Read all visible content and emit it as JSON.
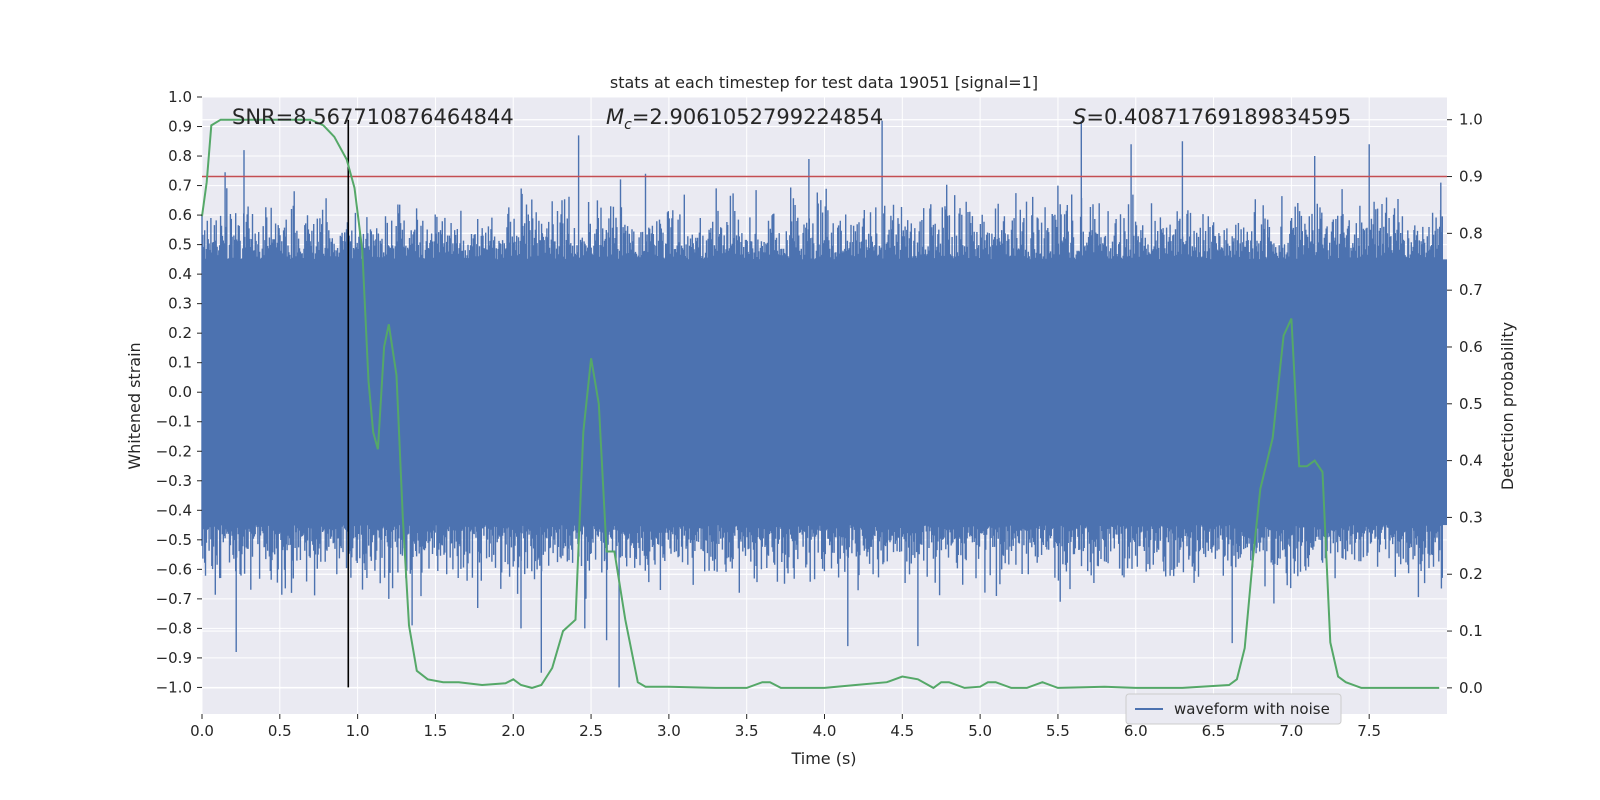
{
  "chart_data": {
    "type": "line",
    "title": "stats at each timestep for test data 19051 [signal=1]",
    "xlabel": "Time (s)",
    "ylabel_left": "Whitened strain",
    "ylabel_right": "Detection probability",
    "xlim": [
      0.0,
      8.0
    ],
    "ylim_left": [
      -1.09,
      1.0
    ],
    "ylim_right": [
      -0.046,
      1.04
    ],
    "xticks": [
      "0.0",
      "0.5",
      "1.0",
      "1.5",
      "2.0",
      "2.5",
      "3.0",
      "3.5",
      "4.0",
      "4.5",
      "5.0",
      "5.5",
      "6.0",
      "6.5",
      "7.0",
      "7.5"
    ],
    "yticks_left": [
      "1.0",
      "0.9",
      "0.8",
      "0.7",
      "0.6",
      "0.5",
      "0.4",
      "0.3",
      "0.2",
      "0.1",
      "0.0",
      "−0.1",
      "−0.2",
      "−0.3",
      "−0.4",
      "−0.5",
      "−0.6",
      "−0.7",
      "−0.8",
      "−0.9",
      "−1.0"
    ],
    "yticks_right": [
      "1.0",
      "0.9",
      "0.8",
      "0.7",
      "0.6",
      "0.5",
      "0.4",
      "0.3",
      "0.2",
      "0.1",
      "0.0"
    ],
    "grid": true,
    "legend": {
      "placement": "lower-right",
      "entries": [
        "waveform with noise"
      ]
    },
    "annotations": {
      "snr": "SNR=8.567710876464844",
      "mc_prefix": "M",
      "mc_sub": "c",
      "mc_value": "=2.9061052799224854",
      "s_prefix": "S",
      "s_value": "=0.40871769189834595"
    },
    "colors": {
      "background": "#eaeaf2",
      "waveform": "#4c72b0",
      "probability": "#55a868",
      "threshold": "#c44e52",
      "marker": "#000000",
      "grid": "#ffffff"
    },
    "threshold_probability": 0.9,
    "signal_marker_time": 0.94,
    "series": [
      {
        "name": "waveform with noise",
        "axis": "left",
        "envelope": {
          "upper_typical": 0.45,
          "lower_typical": -0.45,
          "max_peak": 0.92,
          "min_peak": -1.0
        },
        "peaks": [
          [
            0.0,
            0.6
          ],
          [
            0.22,
            -0.88
          ],
          [
            0.27,
            0.82
          ],
          [
            1.0,
            -0.5
          ],
          [
            1.2,
            -0.7
          ],
          [
            1.35,
            -0.79
          ],
          [
            2.05,
            -0.8
          ],
          [
            2.18,
            -0.95
          ],
          [
            2.42,
            0.87
          ],
          [
            2.46,
            -0.8
          ],
          [
            2.6,
            -0.84
          ],
          [
            2.68,
            -1.0
          ],
          [
            2.85,
            0.74
          ],
          [
            3.9,
            0.79
          ],
          [
            4.15,
            -0.86
          ],
          [
            4.37,
            0.92
          ],
          [
            4.6,
            -0.86
          ],
          [
            5.5,
            0.7
          ],
          [
            5.65,
            0.92
          ],
          [
            5.97,
            0.84
          ],
          [
            6.3,
            0.85
          ],
          [
            6.62,
            -0.85
          ],
          [
            7.15,
            0.8
          ],
          [
            7.5,
            0.84
          ],
          [
            7.96,
            0.71
          ]
        ]
      },
      {
        "name": "",
        "axis": "right",
        "x": [
          0.0,
          0.03,
          0.06,
          0.12,
          0.3,
          0.5,
          0.7,
          0.78,
          0.85,
          0.93,
          0.98,
          1.03,
          1.07,
          1.1,
          1.13,
          1.17,
          1.2,
          1.25,
          1.29,
          1.33,
          1.38,
          1.45,
          1.55,
          1.65,
          1.8,
          1.95,
          2.0,
          2.05,
          2.12,
          2.18,
          2.25,
          2.32,
          2.4,
          2.45,
          2.5,
          2.55,
          2.6,
          2.65,
          2.72,
          2.8,
          2.85,
          3.0,
          3.3,
          3.5,
          3.6,
          3.65,
          3.72,
          4.0,
          4.2,
          4.4,
          4.5,
          4.6,
          4.7,
          4.75,
          4.8,
          4.9,
          5.0,
          5.05,
          5.1,
          5.2,
          5.3,
          5.4,
          5.5,
          5.8,
          6.0,
          6.3,
          6.6,
          6.65,
          6.7,
          6.75,
          6.8,
          6.88,
          6.95,
          7.0,
          7.05,
          7.1,
          7.15,
          7.2,
          7.25,
          7.3,
          7.35,
          7.45,
          7.6,
          7.8,
          7.95
        ],
        "y": [
          0.83,
          0.89,
          0.99,
          1.0,
          1.0,
          1.0,
          1.0,
          0.99,
          0.97,
          0.93,
          0.88,
          0.77,
          0.54,
          0.45,
          0.42,
          0.6,
          0.64,
          0.55,
          0.3,
          0.11,
          0.03,
          0.015,
          0.01,
          0.01,
          0.005,
          0.008,
          0.015,
          0.005,
          0.0,
          0.005,
          0.035,
          0.1,
          0.12,
          0.45,
          0.58,
          0.5,
          0.24,
          0.24,
          0.12,
          0.01,
          0.002,
          0.002,
          0.0,
          0.0,
          0.01,
          0.01,
          0.0,
          0.0,
          0.005,
          0.01,
          0.02,
          0.015,
          0.0,
          0.01,
          0.01,
          0.0,
          0.002,
          0.01,
          0.01,
          0.0,
          0.0,
          0.01,
          0.0,
          0.002,
          0.0,
          0.0,
          0.005,
          0.015,
          0.07,
          0.22,
          0.35,
          0.44,
          0.62,
          0.65,
          0.39,
          0.39,
          0.4,
          0.38,
          0.08,
          0.02,
          0.01,
          0.0,
          0.0,
          0.0,
          0.0
        ]
      }
    ]
  }
}
